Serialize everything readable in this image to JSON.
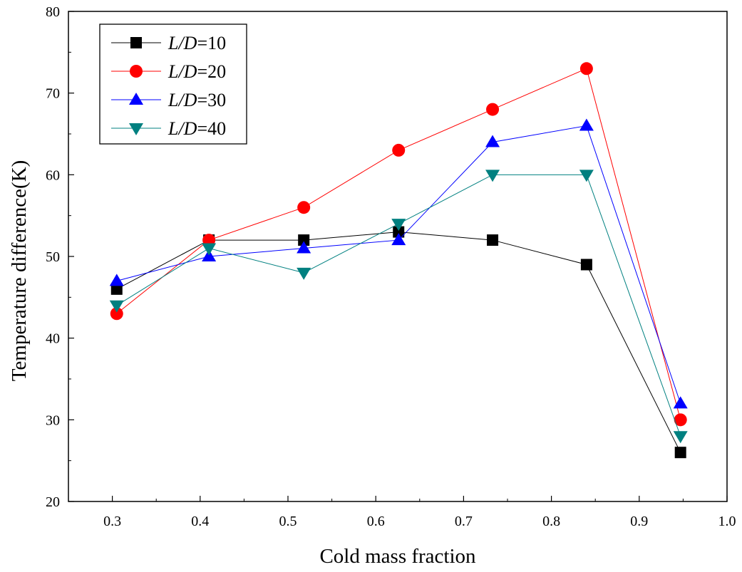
{
  "chart_data": {
    "type": "line",
    "xlabel": "Cold mass fraction",
    "ylabel": "Temperature difference(K)",
    "xlim": [
      0.25,
      1.0
    ],
    "ylim": [
      20,
      80
    ],
    "xticks": [
      0.3,
      0.4,
      0.5,
      0.6,
      0.7,
      0.8,
      0.9,
      1.0
    ],
    "xtick_labels": [
      "0.3",
      "0.4",
      "0.5",
      "0.6",
      "0.7",
      "0.8",
      "0.9",
      "1.0"
    ],
    "yticks": [
      20,
      30,
      40,
      50,
      60,
      70,
      80
    ],
    "ytick_labels": [
      "20",
      "30",
      "40",
      "50",
      "60",
      "70",
      "80"
    ],
    "grid": false,
    "legend_position": "top-left",
    "series": [
      {
        "name_prefix": "L/D",
        "name_value": "=10",
        "color": "#000000",
        "marker": "square",
        "x": [
          0.305,
          0.41,
          0.518,
          0.626,
          0.733,
          0.84,
          0.947
        ],
        "y": [
          46,
          52,
          52,
          53,
          52,
          49,
          26
        ]
      },
      {
        "name_prefix": "L/D",
        "name_value": "=20",
        "color": "#ff0000",
        "marker": "circle",
        "x": [
          0.305,
          0.41,
          0.518,
          0.626,
          0.733,
          0.84,
          0.947
        ],
        "y": [
          43,
          52,
          56,
          63,
          68,
          73,
          30
        ]
      },
      {
        "name_prefix": "L/D",
        "name_value": "=30",
        "color": "#0000ff",
        "marker": "triangle-up",
        "x": [
          0.305,
          0.41,
          0.518,
          0.626,
          0.733,
          0.84,
          0.947
        ],
        "y": [
          47,
          50,
          51,
          52,
          64,
          66,
          32
        ]
      },
      {
        "name_prefix": "L/D",
        "name_value": "=40",
        "color": "#008080",
        "marker": "triangle-down",
        "x": [
          0.305,
          0.41,
          0.518,
          0.626,
          0.733,
          0.84,
          0.947
        ],
        "y": [
          44,
          51,
          48,
          54,
          60,
          60,
          28
        ]
      }
    ]
  }
}
